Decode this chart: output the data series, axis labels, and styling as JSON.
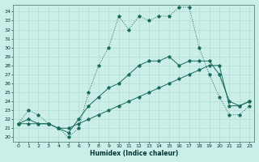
{
  "xlabel": "Humidex (Indice chaleur)",
  "xlim": [
    -0.5,
    23.5
  ],
  "ylim": [
    19.5,
    34.8
  ],
  "yticks": [
    20,
    21,
    22,
    23,
    24,
    25,
    26,
    27,
    28,
    29,
    30,
    31,
    32,
    33,
    34
  ],
  "xticks": [
    0,
    1,
    2,
    3,
    4,
    5,
    6,
    7,
    8,
    9,
    10,
    11,
    12,
    13,
    14,
    15,
    16,
    17,
    18,
    19,
    20,
    21,
    22,
    23
  ],
  "line_color": "#1a6b5a",
  "bg_color": "#cceee8",
  "grid_color": "#b0ddd6",
  "line1_x": [
    0,
    1,
    2,
    3,
    4,
    5,
    6,
    7,
    8,
    9,
    10,
    11,
    12,
    13,
    14,
    15,
    16,
    17,
    18,
    19,
    20,
    21,
    22,
    23
  ],
  "line1_y": [
    21.5,
    23.0,
    22.5,
    21.5,
    21.0,
    20.0,
    21.0,
    25.0,
    28.0,
    30.0,
    33.5,
    32.0,
    33.5,
    33.0,
    33.5,
    33.5,
    34.5,
    34.5,
    30.0,
    27.0,
    24.5,
    22.5,
    22.5,
    23.5
  ],
  "line2_x": [
    0,
    1,
    2,
    3,
    4,
    5,
    6,
    7,
    8,
    9,
    10,
    11,
    12,
    13,
    14,
    15,
    16,
    17,
    18,
    19,
    20,
    21,
    22,
    23
  ],
  "line2_y": [
    21.5,
    22.0,
    21.5,
    21.5,
    21.0,
    20.5,
    22.0,
    23.5,
    24.5,
    25.5,
    26.0,
    27.0,
    28.0,
    28.5,
    28.5,
    29.0,
    28.0,
    28.5,
    28.5,
    28.5,
    27.0,
    24.0,
    23.5,
    24.0
  ],
  "line3_x": [
    0,
    1,
    2,
    3,
    4,
    5,
    6,
    7,
    8,
    9,
    10,
    11,
    12,
    13,
    14,
    15,
    16,
    17,
    18,
    19,
    20,
    21,
    22,
    23
  ],
  "line3_y": [
    21.5,
    21.5,
    21.5,
    21.5,
    21.0,
    21.0,
    21.5,
    22.0,
    22.5,
    23.0,
    23.5,
    24.0,
    24.5,
    25.0,
    25.5,
    26.0,
    26.5,
    27.0,
    27.5,
    28.0,
    28.0,
    23.5,
    23.5,
    24.0
  ]
}
